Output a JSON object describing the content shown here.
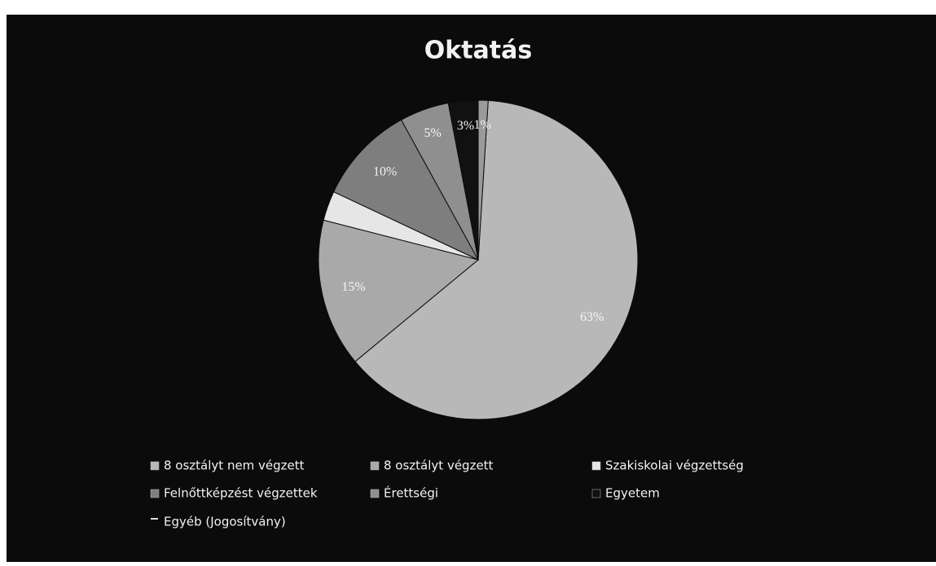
{
  "chart_data": {
    "type": "pie",
    "title": "Oktatás",
    "categories": [
      "8 osztályt nem végzett",
      "8 osztályt végzett",
      "Szakiskolai végzettség",
      "Felnőttképzést végzettek",
      "Érettségi",
      "Egyetem",
      "Egyéb (Jogosítvány)"
    ],
    "values": [
      63,
      15,
      3,
      10,
      5,
      3,
      1
    ],
    "value_labels": [
      "63%",
      "15%",
      null,
      "10%",
      "5%",
      "3%",
      "1%"
    ],
    "colors": [
      "#b8b8b8",
      "#a9a9a9",
      "#e6e6e6",
      "#7e7e7e",
      "#8f8f8f",
      "#111111",
      "#9a9a9a"
    ],
    "legend": "bottom"
  }
}
